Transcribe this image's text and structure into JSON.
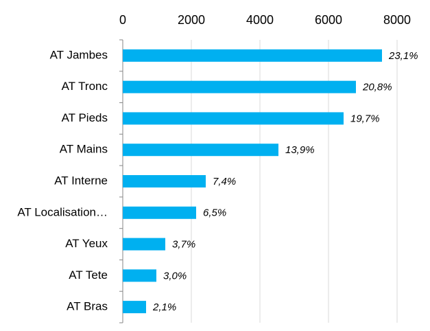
{
  "chart_data": {
    "type": "barh",
    "categories": [
      "AT Jambes",
      "AT Tronc",
      "AT Pieds",
      "AT Mains",
      "AT Interne",
      "AT Localisation…",
      "AT Yeux",
      "AT Tete",
      "AT Bras"
    ],
    "values": [
      7560,
      6800,
      6440,
      4540,
      2420,
      2140,
      1240,
      980,
      680
    ],
    "percent_labels": [
      "23,1%",
      "20,8%",
      "19,7%",
      "13,9%",
      "7,4%",
      "6,5%",
      "3,7%",
      "3,0%",
      "2,1%"
    ],
    "color": "#00b0f0",
    "xlim": [
      0,
      8000
    ],
    "xticks": [
      0,
      2000,
      4000,
      6000,
      8000
    ],
    "grid": true
  }
}
